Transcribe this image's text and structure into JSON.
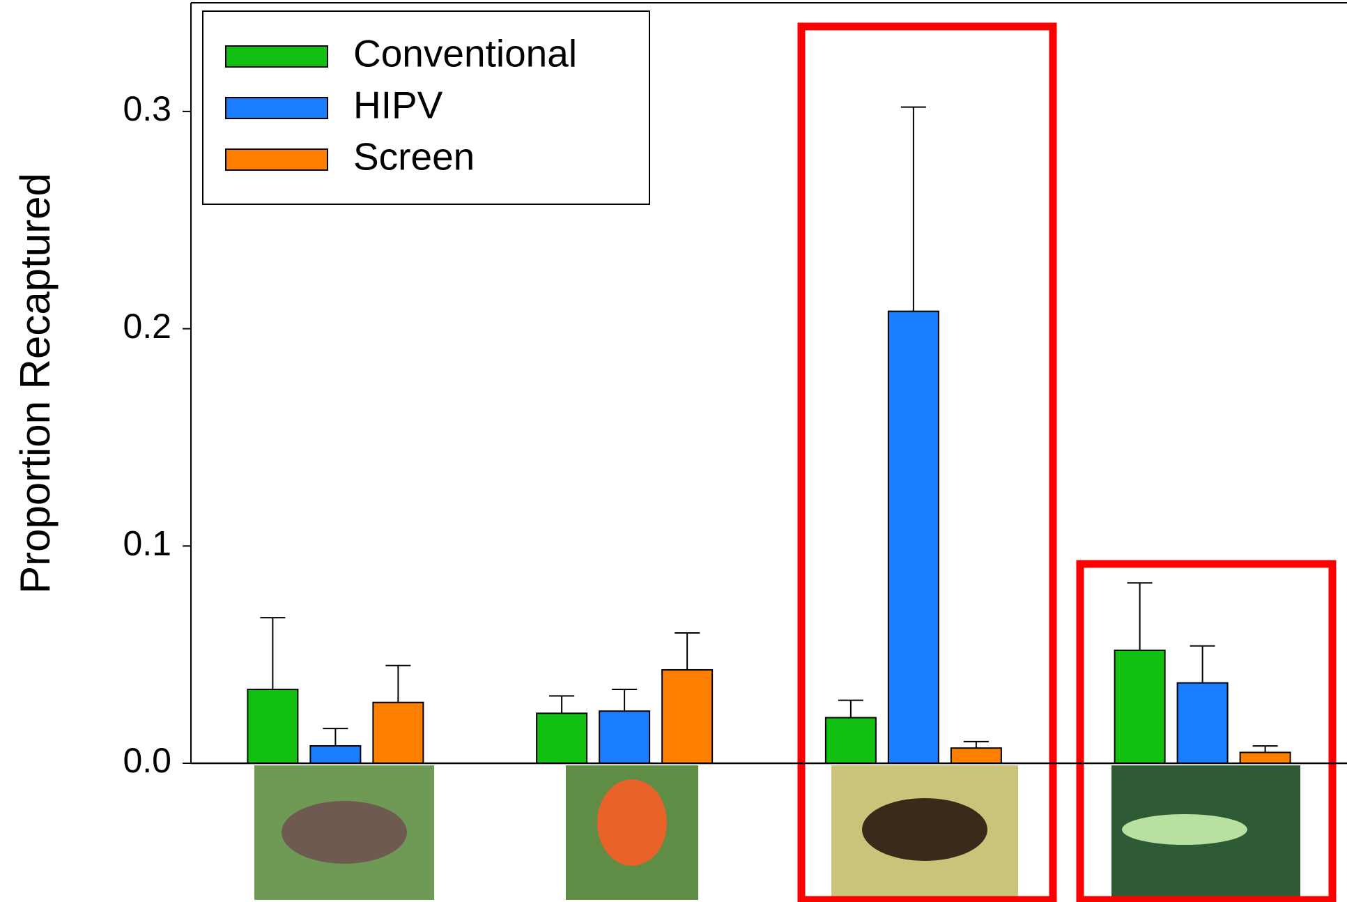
{
  "chart_data": {
    "type": "bar",
    "y_label": "Proportion Recaptured",
    "categories": [
      null,
      null,
      null,
      null
    ],
    "series": [
      {
        "name": "Conventional",
        "color": "#11c011",
        "values": [
          0.034,
          0.023,
          0.021,
          0.052
        ],
        "errors": [
          0.033,
          0.008,
          0.008,
          0.031
        ]
      },
      {
        "name": "HIPV",
        "color": "#1a7eff",
        "values": [
          0.008,
          0.024,
          0.208,
          0.037
        ],
        "errors": [
          0.008,
          0.01,
          0.094,
          0.017
        ]
      },
      {
        "name": "Screen",
        "color": "#ff8000",
        "values": [
          0.028,
          0.043,
          0.007,
          0.005
        ],
        "errors": [
          0.017,
          0.017,
          0.003,
          0.003
        ]
      }
    ],
    "ylim": [
      0,
      0.35
    ],
    "yticks": [
      {
        "value": 0,
        "label": "0.0"
      },
      0.1,
      0.2,
      0.3
    ],
    "legend": "upper left"
  }
}
